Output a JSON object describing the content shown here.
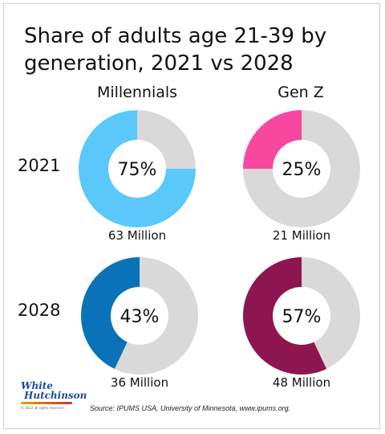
{
  "chart_data": {
    "type": "pie",
    "title": "Share of adults age 21-39 by generation, 2021 vs 2028",
    "columns": [
      "Millennials",
      "Gen Z"
    ],
    "rows": [
      "2021",
      "2028"
    ],
    "cells": [
      {
        "year": "2021",
        "generation": "Millennials",
        "share": 75,
        "share_label": "75%",
        "count_label": "63 Million",
        "color": "#5ac8fa"
      },
      {
        "year": "2021",
        "generation": "Gen Z",
        "share": 25,
        "share_label": "25%",
        "count_label": "21 Million",
        "color": "#f7479f"
      },
      {
        "year": "2028",
        "generation": "Millennials",
        "share": 43,
        "share_label": "43%",
        "count_label": "36 Million",
        "color": "#0a72b8"
      },
      {
        "year": "2028",
        "generation": "Gen Z",
        "share": 57,
        "share_label": "57%",
        "count_label": "48 Million",
        "color": "#8e1650"
      }
    ],
    "remainder_color": "#d9d9d9",
    "source": "Source: IPUMS USA, University of Minnesota, www.ipums.org."
  },
  "logo": {
    "line1": "White",
    "line2": "Hutchinson",
    "fine_print": "© 2022 all rights reserved"
  }
}
